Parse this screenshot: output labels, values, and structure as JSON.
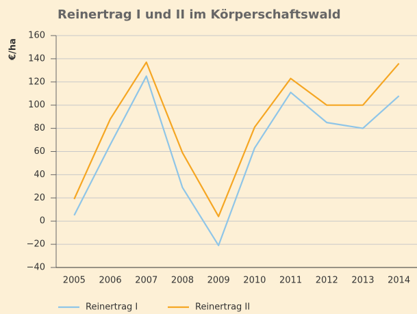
{
  "chart_data": {
    "type": "line",
    "title": "Reinertrag I und II im Körperschaftswald",
    "y_label": "€/ha",
    "categories": [
      "2005",
      "2006",
      "2007",
      "2008",
      "2009",
      "2010",
      "2011",
      "2012",
      "2013",
      "2014"
    ],
    "series": [
      {
        "name": "Reinertrag I",
        "color": "#8ec5e8",
        "values": [
          5,
          66,
          125,
          29,
          -21,
          63,
          111,
          85,
          80,
          108
        ]
      },
      {
        "name": "Reinertrag II",
        "color": "#f5a623",
        "values": [
          19,
          88,
          137,
          59,
          4,
          81,
          123,
          100,
          100,
          136
        ]
      }
    ],
    "ylim": [
      -40,
      160
    ],
    "yticks": [
      {
        "value": -40,
        "label": "−40"
      },
      {
        "value": -20,
        "label": "−20"
      },
      0,
      20,
      40,
      60,
      80,
      100,
      120,
      140,
      160
    ],
    "grid": true,
    "legend": "bottom"
  }
}
